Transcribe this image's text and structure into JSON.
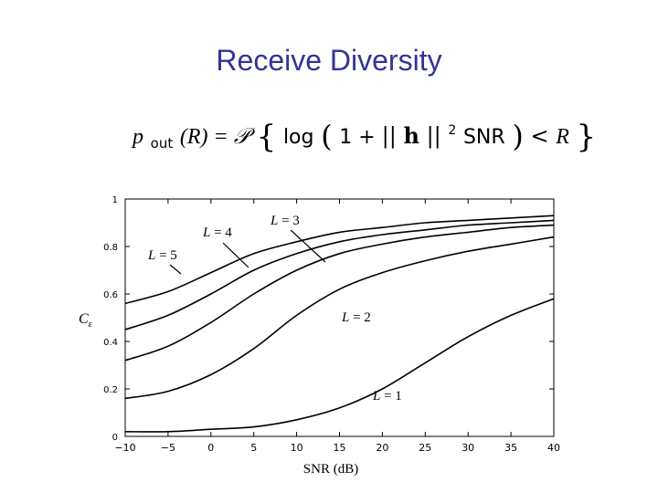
{
  "slide": {
    "title": "Receive Diversity"
  },
  "formula": {
    "p": "p",
    "out": "out",
    "lhs_rest": "(R) = ",
    "cal_p": "𝒫",
    "lbrace": "{",
    "log": "log",
    "lparen": "(",
    "one_plus": "1 + ",
    "norm_open": "||",
    "h": "h",
    "norm_close": "||",
    "sq": "2",
    "snr": "SNR",
    "rparen": ")",
    "less": " < ",
    "R": "R",
    "rbrace": "}"
  },
  "chart_data": {
    "type": "line",
    "xlabel": "SNR (dB)",
    "ylabel": "C",
    "ylabel_sub": "ε",
    "xlim": [
      -10,
      40
    ],
    "ylim": [
      0,
      1
    ],
    "xticks": [
      -10,
      -5,
      0,
      5,
      10,
      15,
      20,
      25,
      30,
      35,
      40
    ],
    "xtick_labels": [
      "−10",
      "−5",
      "0",
      "5",
      "10",
      "15",
      "20",
      "25",
      "30",
      "35",
      "40"
    ],
    "yticks": [
      0,
      0.2,
      0.4,
      0.6,
      0.8,
      1
    ],
    "ytick_labels": [
      "0",
      "0.2",
      "0.4",
      "0.6",
      "0.8",
      "1"
    ],
    "grid": false,
    "x": [
      -10,
      -5,
      0,
      5,
      10,
      15,
      20,
      25,
      30,
      35,
      40
    ],
    "series": [
      {
        "name": "L = 1",
        "values": [
          0.02,
          0.02,
          0.03,
          0.04,
          0.07,
          0.12,
          0.2,
          0.31,
          0.42,
          0.51,
          0.58
        ]
      },
      {
        "name": "L = 2",
        "values": [
          0.16,
          0.19,
          0.26,
          0.37,
          0.51,
          0.62,
          0.69,
          0.74,
          0.78,
          0.81,
          0.84
        ]
      },
      {
        "name": "L = 3",
        "values": [
          0.32,
          0.38,
          0.48,
          0.6,
          0.7,
          0.77,
          0.81,
          0.84,
          0.86,
          0.88,
          0.89
        ]
      },
      {
        "name": "L = 4",
        "values": [
          0.45,
          0.51,
          0.6,
          0.7,
          0.77,
          0.82,
          0.85,
          0.87,
          0.89,
          0.9,
          0.91
        ]
      },
      {
        "name": "L = 5",
        "values": [
          0.56,
          0.61,
          0.69,
          0.77,
          0.82,
          0.86,
          0.88,
          0.9,
          0.91,
          0.92,
          0.93
        ]
      }
    ],
    "annotations": [
      {
        "series": "L = 1",
        "base": "L",
        "eq": " = 1"
      },
      {
        "series": "L = 2",
        "base": "L",
        "eq": " = 2"
      },
      {
        "series": "L = 3",
        "base": "L",
        "eq": " = 3"
      },
      {
        "series": "L = 4",
        "base": "L",
        "eq": " = 4"
      },
      {
        "series": "L = 5",
        "base": "L",
        "eq": " = 5"
      }
    ]
  }
}
